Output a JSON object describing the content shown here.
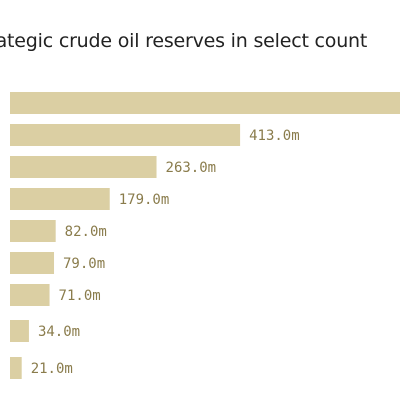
{
  "chart_data": {
    "type": "bar",
    "orientation": "horizontal",
    "title": "rategic crude oil reserves in select count",
    "values": [
      700,
      413,
      263,
      179,
      82,
      79,
      71,
      34,
      21
    ],
    "value_labels": [
      "",
      "413.0m",
      "263.0m",
      "179.0m",
      "82.0m",
      "79.0m",
      "71.0m",
      "34.0m",
      "21.0m"
    ],
    "unit": "million barrels",
    "xlim": [
      0,
      700
    ],
    "grid": false,
    "legend": "none"
  },
  "colors": {
    "bar": "#dbcfa3",
    "label": "#8a7c4c",
    "title": "#222222"
  }
}
